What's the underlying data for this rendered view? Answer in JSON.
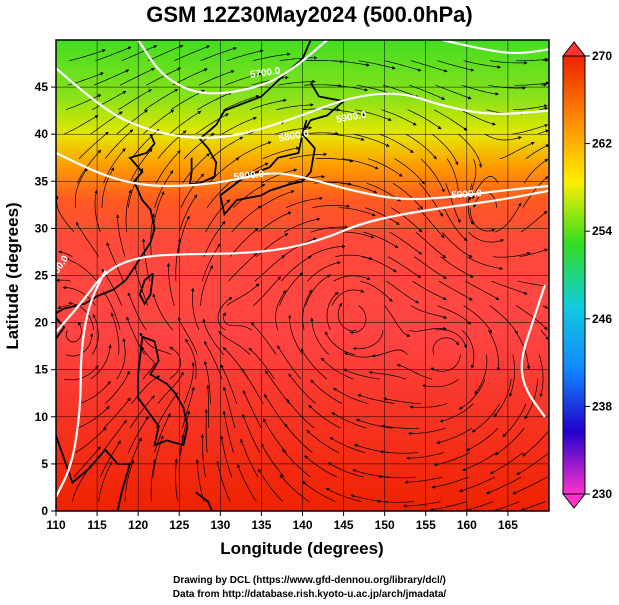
{
  "title": "GSM 12Z30May2024 (500.0hPa)",
  "x_axis": {
    "label": "Longitude (degrees)",
    "min": 110,
    "max": 170,
    "ticks": [
      110,
      115,
      120,
      125,
      130,
      135,
      140,
      145,
      150,
      155,
      160,
      165
    ]
  },
  "y_axis": {
    "label": "Latitude  (degrees)",
    "min": 0,
    "max": 50,
    "ticks": [
      0,
      5,
      10,
      15,
      20,
      25,
      30,
      35,
      40,
      45
    ]
  },
  "colorbar": {
    "min": 230,
    "max": 270,
    "tick_labels": [
      "230",
      "238",
      "246",
      "254",
      "262",
      "270"
    ],
    "stops": [
      "#ff33cc",
      "#2200cc",
      "#1188ff",
      "#11ccdd",
      "#33dd22",
      "#ffee00",
      "#ff8800",
      "#ee2200"
    ]
  },
  "contours": {
    "color": "#ffffff",
    "labels": [
      "5700.0",
      "5800.0",
      "5900.0",
      "5900.0",
      "5900.0",
      "5900.0"
    ],
    "lines": [
      {
        "level": 5700,
        "points": [
          [
            120,
            50
          ],
          [
            123,
            46
          ],
          [
            128,
            44
          ],
          [
            135,
            45
          ],
          [
            139,
            47
          ],
          [
            143,
            50
          ]
        ]
      },
      {
        "level": 5700,
        "points": [
          [
            157,
            50
          ],
          [
            162,
            49
          ],
          [
            166,
            48.5
          ],
          [
            170,
            49
          ]
        ]
      },
      {
        "level": 5800,
        "points": [
          [
            110,
            47
          ],
          [
            114,
            44
          ],
          [
            118,
            41.5
          ],
          [
            123,
            40
          ],
          [
            128,
            39.5
          ],
          [
            133,
            40
          ],
          [
            140,
            42
          ],
          [
            146,
            44
          ],
          [
            152,
            44.5
          ],
          [
            157,
            43
          ],
          [
            163,
            42
          ],
          [
            170,
            42.5
          ]
        ]
      },
      {
        "level": 5900,
        "points": [
          [
            110,
            38
          ],
          [
            116,
            35.5
          ],
          [
            121,
            34.5
          ],
          [
            126,
            34.5
          ],
          [
            131,
            35
          ],
          [
            136,
            36
          ],
          [
            140,
            35.5
          ],
          [
            146,
            34
          ],
          [
            152,
            33
          ],
          [
            158,
            33.3
          ],
          [
            164,
            34
          ],
          [
            170,
            34.5
          ]
        ]
      },
      {
        "level": 5900,
        "points": [
          [
            110,
            19
          ],
          [
            113,
            22
          ],
          [
            116,
            25.5
          ],
          [
            120,
            27
          ],
          [
            126,
            27.3
          ],
          [
            132,
            27.3
          ],
          [
            138,
            27.8
          ],
          [
            143,
            29
          ],
          [
            147,
            30.5
          ],
          [
            152,
            31.5
          ],
          [
            158,
            32.3
          ],
          [
            164,
            33
          ],
          [
            170,
            34
          ]
        ]
      },
      {
        "level": 5900,
        "points": [
          [
            110,
            1.5
          ],
          [
            112,
            5
          ],
          [
            113,
            11
          ],
          [
            113,
            17
          ],
          [
            114,
            22
          ],
          [
            116,
            25.5
          ]
        ]
      },
      {
        "level": 5900,
        "points": [
          [
            169.5,
            24
          ],
          [
            168,
            20
          ],
          [
            166.5,
            16
          ],
          [
            167,
            13
          ],
          [
            169.5,
            10
          ]
        ]
      }
    ]
  },
  "credits": {
    "line1": "Drawing by DCL (https://www.gfd-dennou.org/library/dcl/)",
    "line2": "Data from http://database.rish.kyoto-u.ac.jp/arch/jmadata/"
  }
}
